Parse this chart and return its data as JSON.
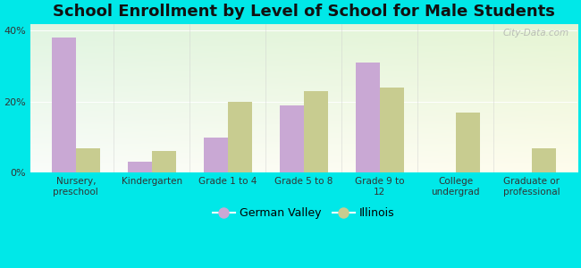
{
  "title": "School Enrollment by Level of School for Male Students",
  "categories": [
    "Nursery,\npreschool",
    "Kindergarten",
    "Grade 1 to 4",
    "Grade 5 to 8",
    "Grade 9 to\n12",
    "College\nundergrad",
    "Graduate or\nprofessional"
  ],
  "german_valley": [
    38,
    3,
    10,
    19,
    31,
    0,
    0
  ],
  "illinois": [
    7,
    6,
    20,
    23,
    24,
    17,
    7
  ],
  "german_valley_color": "#c9a8d4",
  "illinois_color": "#c8cc90",
  "background_color": "#00e8e8",
  "title_fontsize": 13,
  "ylim": [
    0,
    42
  ],
  "yticks": [
    0,
    20,
    40
  ],
  "ytick_labels": [
    "0%",
    "20%",
    "40%"
  ],
  "bar_width": 0.32,
  "legend_labels": [
    "German Valley",
    "Illinois"
  ],
  "watermark": "City-Data.com"
}
